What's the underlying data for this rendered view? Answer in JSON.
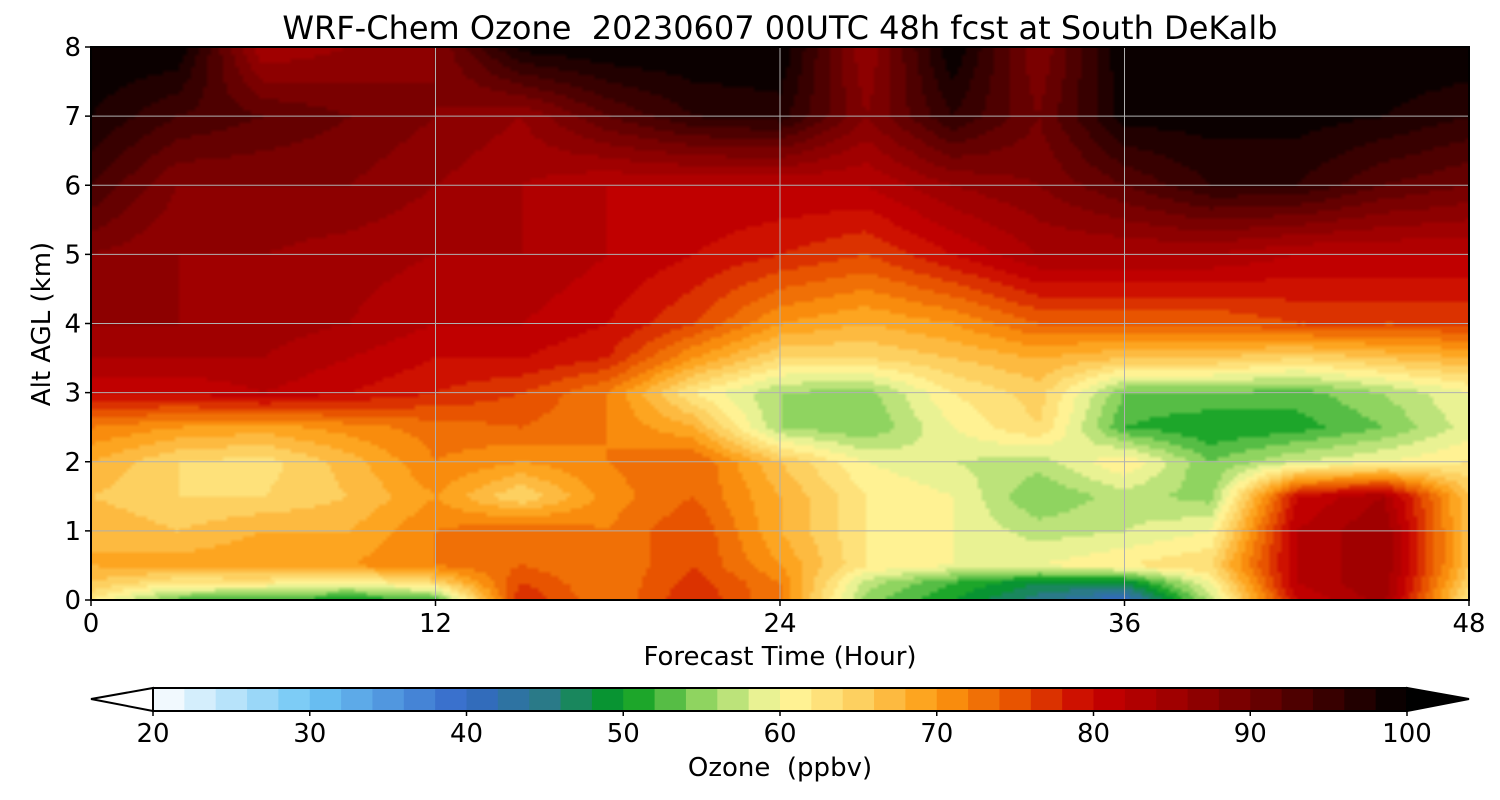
{
  "chart_data": {
    "type": "heatmap",
    "title": "WRF-Chem Ozone  20230607 00UTC 48h fcst at South DeKalb",
    "xlabel": "Forecast Time (Hour)",
    "ylabel": "Alt AGL (km)",
    "xlim": [
      0,
      48
    ],
    "ylim": [
      0,
      8
    ],
    "xticks": [
      0,
      12,
      24,
      36,
      48
    ],
    "yticks": [
      0,
      1,
      2,
      3,
      4,
      5,
      6,
      7,
      8
    ],
    "grid": true,
    "z_unit": "ppbv",
    "x": [
      0,
      3,
      6,
      9,
      12,
      15,
      18,
      21,
      24,
      27,
      30,
      33,
      36,
      39,
      42,
      45,
      48
    ],
    "y": [
      0,
      0.25,
      0.5,
      1,
      1.5,
      2,
      2.5,
      3,
      3.5,
      4,
      5,
      6,
      7,
      8
    ],
    "z": [
      [
        62,
        53,
        52,
        50,
        52,
        78,
        72,
        78,
        72,
        55,
        50,
        45,
        40,
        57,
        80,
        85,
        62
      ],
      [
        66,
        62,
        62,
        60,
        64,
        76,
        72,
        77,
        72,
        57,
        52,
        48,
        48,
        60,
        82,
        86,
        64
      ],
      [
        68,
        69,
        70,
        70,
        72,
        74,
        72,
        76,
        70,
        62,
        60,
        60,
        62,
        64,
        82,
        86,
        66
      ],
      [
        68,
        66,
        68,
        68,
        72,
        74,
        72,
        76,
        68,
        62,
        60,
        57,
        58,
        60,
        82,
        86,
        66
      ],
      [
        66,
        64,
        64,
        66,
        70,
        64,
        71,
        74,
        68,
        62,
        60,
        54,
        57,
        55,
        80,
        84,
        66
      ],
      [
        68,
        64,
        63,
        67,
        72,
        70,
        72,
        74,
        66,
        60,
        58,
        57,
        62,
        54,
        58,
        60,
        62
      ],
      [
        72,
        70,
        69,
        71,
        73,
        74,
        72,
        68,
        56,
        54,
        60,
        64,
        52,
        50,
        51,
        54,
        59
      ],
      [
        80,
        80,
        82,
        80,
        78,
        76,
        72,
        62,
        56,
        55,
        62,
        65,
        54,
        54,
        53,
        56,
        60
      ],
      [
        84,
        84,
        84,
        82,
        80,
        80,
        78,
        70,
        64,
        64,
        66,
        68,
        66,
        66,
        64,
        66,
        68
      ],
      [
        86,
        86,
        85,
        84,
        82,
        82,
        80,
        76,
        70,
        68,
        70,
        74,
        74,
        74,
        76,
        76,
        76
      ],
      [
        88,
        86,
        86,
        85,
        84,
        84,
        82,
        80,
        78,
        76,
        80,
        84,
        84,
        84,
        82,
        82,
        82
      ],
      [
        94,
        88,
        88,
        88,
        86,
        84,
        82,
        82,
        82,
        82,
        86,
        88,
        92,
        96,
        96,
        92,
        90
      ],
      [
        98,
        94,
        92,
        90,
        88,
        86,
        92,
        96,
        97,
        88,
        96,
        90,
        99,
        99,
        99,
        98,
        96
      ],
      [
        100,
        100,
        84,
        86,
        88,
        99,
        100,
        100,
        100,
        86,
        100,
        88,
        100,
        100,
        100,
        100,
        100
      ]
    ],
    "colorbar": {
      "label": "Ozone  (ppbv)",
      "min": 20,
      "max": 100,
      "ticks": [
        20,
        30,
        40,
        50,
        60,
        70,
        80,
        90,
        100
      ],
      "extend": "both",
      "colors": [
        {
          "v": 20,
          "c": "#ffffff"
        },
        {
          "v": 30,
          "c": "#6ec6f5"
        },
        {
          "v": 40,
          "c": "#3468c8"
        },
        {
          "v": 45,
          "c": "#2a7a88"
        },
        {
          "v": 50,
          "c": "#009a1c"
        },
        {
          "v": 55,
          "c": "#8fd460"
        },
        {
          "v": 60,
          "c": "#fffaa0"
        },
        {
          "v": 65,
          "c": "#fdd060"
        },
        {
          "v": 70,
          "c": "#fd9a10"
        },
        {
          "v": 75,
          "c": "#e85400"
        },
        {
          "v": 80,
          "c": "#c80000"
        },
        {
          "v": 85,
          "c": "#a00000"
        },
        {
          "v": 90,
          "c": "#700000"
        },
        {
          "v": 95,
          "c": "#380000"
        },
        {
          "v": 100,
          "c": "#000000"
        }
      ]
    }
  }
}
